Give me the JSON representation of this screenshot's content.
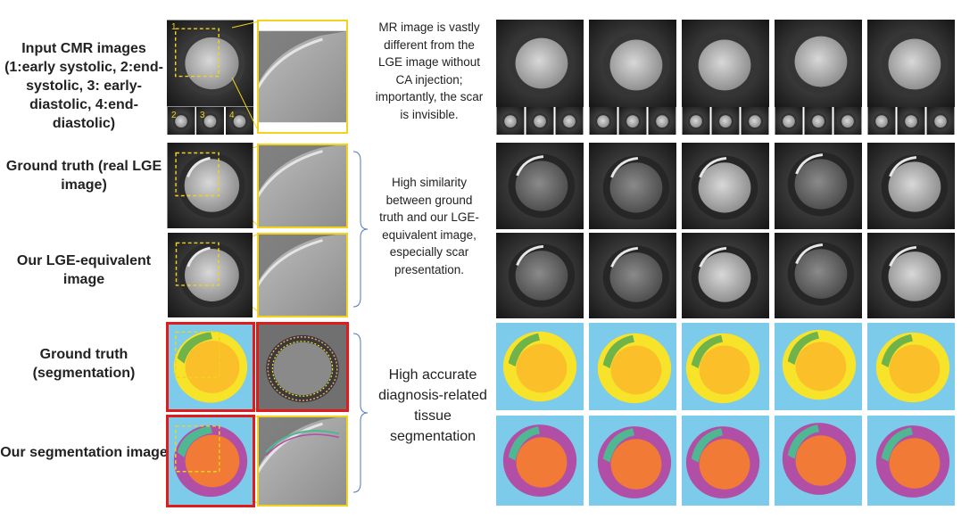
{
  "rows": [
    {
      "label": "Input CMR images (1:early systolic, 2:end-systolic, 3: early-diastolic, 4:end-diastolic)"
    },
    {
      "label": "Ground truth (real LGE image)"
    },
    {
      "label": "Our LGE-equivalent image"
    },
    {
      "label": "Ground truth (segmentation)"
    },
    {
      "label": "Our segmentation image"
    }
  ],
  "notes": {
    "input": "MR image is vastly different from the LGE image without CA injection; importantly, the scar is invisible.",
    "similarity": "High similarity between ground truth and our LGE-equivalent image, especially scar presentation.",
    "segmentation": "High accurate diagnosis-related tissue segmentation"
  },
  "phase_numbers": [
    "1",
    "2",
    "3",
    "4"
  ],
  "colors": {
    "zoom_frame": "#f2d21a",
    "seg_frame": "#e01b1b",
    "background_seg": "#7ccbea",
    "lv_cavity": "#fbbf2a",
    "myocardium_gt": "#f6e32a",
    "scar_gt": "#6fb34a",
    "lv_cavity_pred": "#f07a36",
    "myocardium_pred": "#b14fa6",
    "scar_pred": "#4fb893"
  }
}
